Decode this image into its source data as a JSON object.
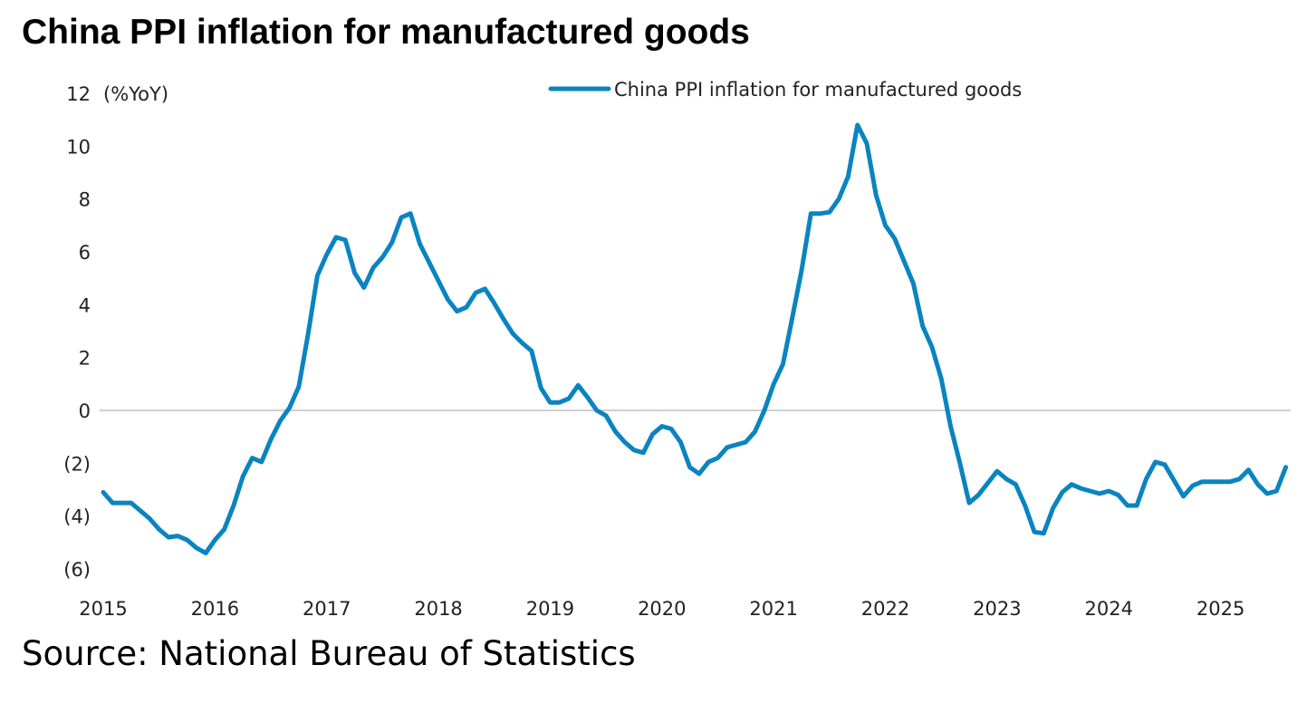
{
  "chart_data": {
    "type": "line",
    "title": "China PPI inflation for manufactured goods",
    "ylabel": "(%YoY)",
    "xlabel": "",
    "source": "Source: National Bureau of Statistics",
    "ylim": [
      -6,
      12
    ],
    "y_ticks": [
      12,
      10,
      8,
      6,
      4,
      2,
      0,
      -2,
      -4,
      -6
    ],
    "y_tick_labels": [
      "12",
      "10",
      "8",
      "6",
      "4",
      "2",
      "0",
      "(2)",
      "(4)",
      "(6)"
    ],
    "x_tick_labels": [
      "2015",
      "2016",
      "2017",
      "2018",
      "2019",
      "2020",
      "2021",
      "2022",
      "2023",
      "2024",
      "2025"
    ],
    "x_start": "2015-01",
    "frequency": "monthly",
    "grid": "zero line only",
    "legend_placement": "top-right",
    "color": "#0a84c1",
    "series": [
      {
        "name": "China PPI inflation for manufactured goods",
        "values": [
          -3.1,
          -3.5,
          -3.5,
          -3.5,
          -3.8,
          -4.1,
          -4.5,
          -4.8,
          -4.75,
          -4.9,
          -5.2,
          -5.4,
          -4.9,
          -4.5,
          -3.6,
          -2.5,
          -1.8,
          -1.95,
          -1.1,
          -0.4,
          0.1,
          0.9,
          2.9,
          5.1,
          5.9,
          6.55,
          6.45,
          5.2,
          4.65,
          5.4,
          5.8,
          6.35,
          7.3,
          7.45,
          6.3,
          5.6,
          4.9,
          4.2,
          3.75,
          3.9,
          4.45,
          4.6,
          4.05,
          3.45,
          2.9,
          2.55,
          2.25,
          0.85,
          0.3,
          0.3,
          0.45,
          0.95,
          0.5,
          0.0,
          -0.2,
          -0.8,
          -1.2,
          -1.5,
          -1.6,
          -0.9,
          -0.6,
          -0.7,
          -1.2,
          -2.15,
          -2.4,
          -1.95,
          -1.8,
          -1.4,
          -1.3,
          -1.2,
          -0.8,
          0.0,
          1.0,
          1.75,
          3.5,
          5.3,
          7.45,
          7.45,
          7.5,
          8.0,
          8.85,
          10.8,
          10.1,
          8.15,
          7.0,
          6.5,
          5.65,
          4.8,
          3.2,
          2.4,
          1.2,
          -0.6,
          -2.0,
          -3.5,
          -3.2,
          -2.75,
          -2.3,
          -2.6,
          -2.8,
          -3.6,
          -4.6,
          -4.65,
          -3.7,
          -3.1,
          -2.8,
          -2.95,
          -3.05,
          -3.15,
          -3.05,
          -3.2,
          -3.6,
          -3.6,
          -2.6,
          -1.95,
          -2.05,
          -2.65,
          -3.25,
          -2.85,
          -2.7,
          -2.7,
          -2.7,
          -2.7,
          -2.6,
          -2.25,
          -2.8,
          -3.15,
          -3.05,
          -2.15
        ]
      }
    ]
  }
}
